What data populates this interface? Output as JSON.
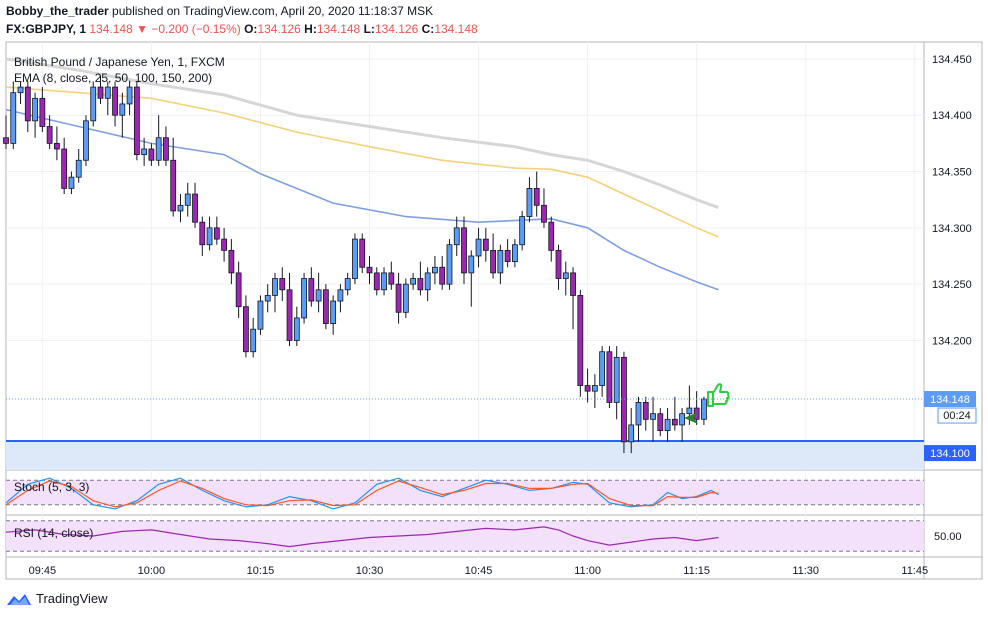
{
  "header": {
    "author": "Bobby_the_trader",
    "published_text": "published on TradingView.com, April 20, 2020 11:18:37 MSK",
    "symbol": "FX:GBPJPY, 1",
    "last": "134.148",
    "change": "−0.200 (−0.15%)",
    "o_label": "O:",
    "o": "134.126",
    "h_label": "H:",
    "h": "134.148",
    "l_label": "L:",
    "l": "134.126",
    "c_label": "C:",
    "c": "134.148"
  },
  "chart_data": {
    "type": "candlestick",
    "title": "British Pound / Japanese Yen, 1, FXCM",
    "indicator_label": "EMA (8, close, 25, 50, 100, 150, 200)",
    "ylim": [
      134.085,
      134.465
    ],
    "y_ticks": [
      "134.450",
      "134.400",
      "134.350",
      "134.300",
      "134.250",
      "134.200"
    ],
    "x_ticks": [
      "09:45",
      "10:00",
      "10:15",
      "10:30",
      "10:45",
      "11:00",
      "11:15",
      "11:30",
      "11:45"
    ],
    "x_tick_minutes": [
      585,
      600,
      615,
      630,
      645,
      660,
      675,
      690,
      705
    ],
    "start_minute": 580,
    "price_label": "134.148",
    "countdown": "00:24",
    "support_level": "134.100",
    "colors": {
      "up": "#5b9cf6",
      "down": "#9c27b0",
      "ema_fast": "#7e9fe0",
      "ema_mid": "#f5d27a",
      "ema_slow": "#d6d6d6",
      "support": "#2962ff"
    },
    "candles": [
      [
        134.38,
        134.4,
        134.37,
        134.375
      ],
      [
        134.375,
        134.43,
        134.37,
        134.42
      ],
      [
        134.42,
        134.43,
        134.41,
        134.425
      ],
      [
        134.425,
        134.43,
        134.385,
        134.395
      ],
      [
        134.395,
        134.42,
        134.38,
        134.415
      ],
      [
        134.415,
        134.425,
        134.385,
        134.39
      ],
      [
        134.39,
        134.4,
        134.37,
        134.375
      ],
      [
        134.375,
        134.39,
        134.36,
        134.37
      ],
      [
        134.37,
        134.38,
        134.33,
        134.335
      ],
      [
        134.335,
        134.35,
        134.33,
        134.345
      ],
      [
        134.345,
        134.37,
        134.34,
        134.36
      ],
      [
        134.36,
        134.4,
        134.355,
        134.395
      ],
      [
        134.395,
        134.43,
        134.39,
        134.425
      ],
      [
        134.425,
        134.435,
        134.41,
        134.415
      ],
      [
        134.415,
        134.43,
        134.4,
        134.425
      ],
      [
        134.425,
        134.43,
        134.39,
        134.4
      ],
      [
        134.4,
        134.42,
        134.38,
        134.41
      ],
      [
        134.41,
        134.43,
        134.4,
        134.425
      ],
      [
        134.425,
        134.43,
        134.36,
        134.365
      ],
      [
        134.365,
        134.38,
        134.355,
        134.37
      ],
      [
        134.37,
        134.375,
        134.355,
        134.36
      ],
      [
        134.36,
        134.4,
        134.355,
        134.38
      ],
      [
        134.38,
        134.39,
        134.355,
        134.36
      ],
      [
        134.36,
        134.38,
        134.31,
        134.315
      ],
      [
        134.315,
        134.33,
        134.305,
        134.32
      ],
      [
        134.32,
        134.34,
        134.31,
        134.33
      ],
      [
        134.33,
        134.34,
        134.3,
        134.305
      ],
      [
        134.305,
        134.31,
        134.275,
        134.285
      ],
      [
        134.285,
        134.31,
        134.28,
        134.3
      ],
      [
        134.3,
        134.31,
        134.285,
        134.29
      ],
      [
        134.29,
        134.3,
        134.27,
        134.28
      ],
      [
        134.28,
        134.29,
        134.25,
        134.26
      ],
      [
        134.26,
        134.27,
        134.22,
        134.23
      ],
      [
        134.23,
        134.24,
        134.185,
        134.19
      ],
      [
        134.19,
        134.22,
        134.185,
        134.21
      ],
      [
        134.21,
        134.24,
        134.205,
        134.235
      ],
      [
        134.235,
        134.25,
        134.225,
        134.24
      ],
      [
        134.24,
        134.26,
        134.225,
        134.255
      ],
      [
        134.255,
        134.265,
        134.235,
        134.245
      ],
      [
        134.245,
        134.26,
        134.195,
        134.2
      ],
      [
        134.2,
        134.23,
        134.195,
        134.22
      ],
      [
        134.22,
        134.26,
        134.215,
        134.255
      ],
      [
        134.255,
        134.265,
        134.23,
        134.235
      ],
      [
        134.235,
        134.26,
        134.225,
        134.245
      ],
      [
        134.245,
        134.25,
        134.21,
        134.215
      ],
      [
        134.215,
        134.24,
        134.205,
        134.235
      ],
      [
        134.235,
        134.25,
        134.225,
        134.245
      ],
      [
        134.245,
        134.26,
        134.24,
        134.255
      ],
      [
        134.255,
        134.295,
        134.25,
        134.29
      ],
      [
        134.29,
        134.295,
        134.26,
        134.265
      ],
      [
        134.265,
        134.275,
        134.25,
        134.26
      ],
      [
        134.26,
        134.265,
        134.24,
        134.245
      ],
      [
        134.245,
        134.265,
        134.24,
        134.26
      ],
      [
        134.26,
        134.27,
        134.245,
        134.25
      ],
      [
        134.25,
        134.26,
        134.215,
        134.225
      ],
      [
        134.225,
        134.255,
        134.22,
        134.25
      ],
      [
        134.25,
        134.26,
        134.245,
        134.255
      ],
      [
        134.255,
        134.27,
        134.24,
        134.245
      ],
      [
        134.245,
        134.265,
        134.235,
        134.26
      ],
      [
        134.26,
        134.275,
        134.25,
        134.265
      ],
      [
        134.265,
        134.275,
        134.245,
        134.25
      ],
      [
        134.25,
        134.29,
        134.245,
        134.285
      ],
      [
        134.285,
        134.31,
        134.275,
        134.3
      ],
      [
        134.3,
        134.31,
        134.25,
        134.26
      ],
      [
        134.26,
        134.28,
        134.23,
        134.275
      ],
      [
        134.275,
        134.3,
        134.265,
        134.29
      ],
      [
        134.29,
        134.3,
        134.27,
        134.28
      ],
      [
        134.28,
        134.295,
        134.255,
        134.26
      ],
      [
        134.26,
        134.285,
        134.25,
        134.28
      ],
      [
        134.28,
        134.29,
        134.265,
        134.27
      ],
      [
        134.27,
        134.29,
        134.265,
        134.285
      ],
      [
        134.285,
        134.315,
        134.28,
        134.31
      ],
      [
        134.31,
        134.345,
        134.305,
        134.335
      ],
      [
        134.335,
        134.35,
        134.31,
        134.32
      ],
      [
        134.32,
        134.335,
        134.3,
        134.305
      ],
      [
        134.305,
        134.31,
        134.27,
        134.28
      ],
      [
        134.28,
        134.285,
        134.245,
        134.255
      ],
      [
        134.255,
        134.27,
        134.24,
        134.26
      ],
      [
        134.26,
        134.265,
        134.21,
        134.24
      ],
      [
        134.24,
        134.245,
        134.15,
        134.16
      ],
      [
        134.16,
        134.175,
        134.145,
        134.155
      ],
      [
        134.155,
        134.17,
        134.14,
        134.16
      ],
      [
        134.16,
        134.195,
        134.15,
        134.19
      ],
      [
        134.19,
        134.195,
        134.14,
        134.145
      ],
      [
        134.145,
        134.195,
        134.13,
        134.185
      ],
      [
        134.185,
        134.19,
        134.1,
        134.11
      ],
      [
        134.11,
        134.14,
        134.1,
        134.125
      ],
      [
        134.125,
        134.15,
        134.11,
        134.145
      ],
      [
        134.145,
        134.15,
        134.12,
        134.13
      ],
      [
        134.13,
        134.15,
        134.11,
        134.135
      ],
      [
        134.135,
        134.14,
        134.115,
        134.12
      ],
      [
        134.12,
        134.14,
        134.11,
        134.13
      ],
      [
        134.13,
        134.15,
        134.12,
        134.125
      ],
      [
        134.125,
        134.14,
        134.11,
        134.135
      ],
      [
        134.135,
        134.16,
        134.125,
        134.14
      ],
      [
        134.14,
        134.155,
        134.125,
        134.13
      ],
      [
        134.13,
        134.15,
        134.125,
        134.148
      ]
    ],
    "ema_fast": [
      [
        580,
        134.405
      ],
      [
        590,
        134.39
      ],
      [
        600,
        134.375
      ],
      [
        610,
        134.365
      ],
      [
        615,
        134.348
      ],
      [
        625,
        134.322
      ],
      [
        635,
        134.31
      ],
      [
        645,
        134.305
      ],
      [
        655,
        134.308
      ],
      [
        660,
        134.3
      ],
      [
        665,
        134.28
      ],
      [
        670,
        134.265
      ],
      [
        675,
        134.252
      ],
      [
        678,
        134.245
      ]
    ],
    "ema_mid": [
      [
        580,
        134.425
      ],
      [
        590,
        134.42
      ],
      [
        600,
        134.415
      ],
      [
        610,
        134.402
      ],
      [
        620,
        134.385
      ],
      [
        630,
        134.372
      ],
      [
        640,
        134.36
      ],
      [
        650,
        134.353
      ],
      [
        655,
        134.352
      ],
      [
        660,
        134.345
      ],
      [
        665,
        134.33
      ],
      [
        670,
        134.315
      ],
      [
        675,
        134.3
      ],
      [
        678,
        134.292
      ]
    ],
    "ema_slow": [
      [
        580,
        134.45
      ],
      [
        590,
        134.44
      ],
      [
        600,
        134.428
      ],
      [
        610,
        134.418
      ],
      [
        620,
        134.4
      ],
      [
        630,
        134.39
      ],
      [
        640,
        134.38
      ],
      [
        650,
        134.372
      ],
      [
        655,
        134.365
      ],
      [
        660,
        134.36
      ],
      [
        665,
        134.35
      ],
      [
        670,
        134.338
      ],
      [
        675,
        134.325
      ],
      [
        678,
        134.318
      ]
    ],
    "stoch_label": "Stoch (5, 3, 3)",
    "stoch_k": [
      [
        580,
        25
      ],
      [
        583,
        70
      ],
      [
        586,
        85
      ],
      [
        589,
        60
      ],
      [
        592,
        20
      ],
      [
        595,
        10
      ],
      [
        598,
        30
      ],
      [
        601,
        70
      ],
      [
        604,
        85
      ],
      [
        607,
        55
      ],
      [
        610,
        30
      ],
      [
        613,
        15
      ],
      [
        616,
        20
      ],
      [
        619,
        40
      ],
      [
        622,
        30
      ],
      [
        625,
        10
      ],
      [
        628,
        25
      ],
      [
        631,
        70
      ],
      [
        634,
        85
      ],
      [
        637,
        55
      ],
      [
        640,
        40
      ],
      [
        643,
        60
      ],
      [
        646,
        80
      ],
      [
        649,
        70
      ],
      [
        652,
        55
      ],
      [
        655,
        60
      ],
      [
        658,
        75
      ],
      [
        660,
        70
      ],
      [
        663,
        25
      ],
      [
        666,
        15
      ],
      [
        669,
        20
      ],
      [
        671,
        50
      ],
      [
        673,
        35
      ],
      [
        675,
        40
      ],
      [
        677,
        55
      ],
      [
        678,
        45
      ]
    ],
    "stoch_d": [
      [
        580,
        20
      ],
      [
        583,
        55
      ],
      [
        586,
        78
      ],
      [
        589,
        65
      ],
      [
        592,
        30
      ],
      [
        595,
        15
      ],
      [
        598,
        25
      ],
      [
        601,
        55
      ],
      [
        604,
        78
      ],
      [
        607,
        60
      ],
      [
        610,
        35
      ],
      [
        613,
        20
      ],
      [
        616,
        18
      ],
      [
        619,
        30
      ],
      [
        622,
        32
      ],
      [
        625,
        18
      ],
      [
        628,
        20
      ],
      [
        631,
        55
      ],
      [
        634,
        78
      ],
      [
        637,
        62
      ],
      [
        640,
        45
      ],
      [
        643,
        55
      ],
      [
        646,
        72
      ],
      [
        649,
        72
      ],
      [
        652,
        60
      ],
      [
        655,
        60
      ],
      [
        658,
        70
      ],
      [
        660,
        72
      ],
      [
        663,
        35
      ],
      [
        666,
        18
      ],
      [
        669,
        18
      ],
      [
        671,
        40
      ],
      [
        673,
        38
      ],
      [
        675,
        38
      ],
      [
        677,
        50
      ],
      [
        678,
        48
      ]
    ],
    "rsi_label": "RSI (14, close)",
    "rsi_tick": "50.00",
    "rsi": [
      [
        580,
        55
      ],
      [
        584,
        58
      ],
      [
        588,
        52
      ],
      [
        592,
        50
      ],
      [
        596,
        56
      ],
      [
        600,
        58
      ],
      [
        604,
        52
      ],
      [
        608,
        46
      ],
      [
        612,
        44
      ],
      [
        616,
        40
      ],
      [
        619,
        36
      ],
      [
        622,
        40
      ],
      [
        626,
        44
      ],
      [
        630,
        48
      ],
      [
        634,
        50
      ],
      [
        638,
        52
      ],
      [
        642,
        56
      ],
      [
        646,
        60
      ],
      [
        650,
        58
      ],
      [
        652,
        60
      ],
      [
        654,
        62
      ],
      [
        656,
        58
      ],
      [
        658,
        50
      ],
      [
        660,
        44
      ],
      [
        663,
        38
      ],
      [
        666,
        42
      ],
      [
        669,
        46
      ],
      [
        672,
        48
      ],
      [
        675,
        44
      ],
      [
        678,
        48
      ]
    ]
  },
  "footer": {
    "brand": "TradingView"
  }
}
